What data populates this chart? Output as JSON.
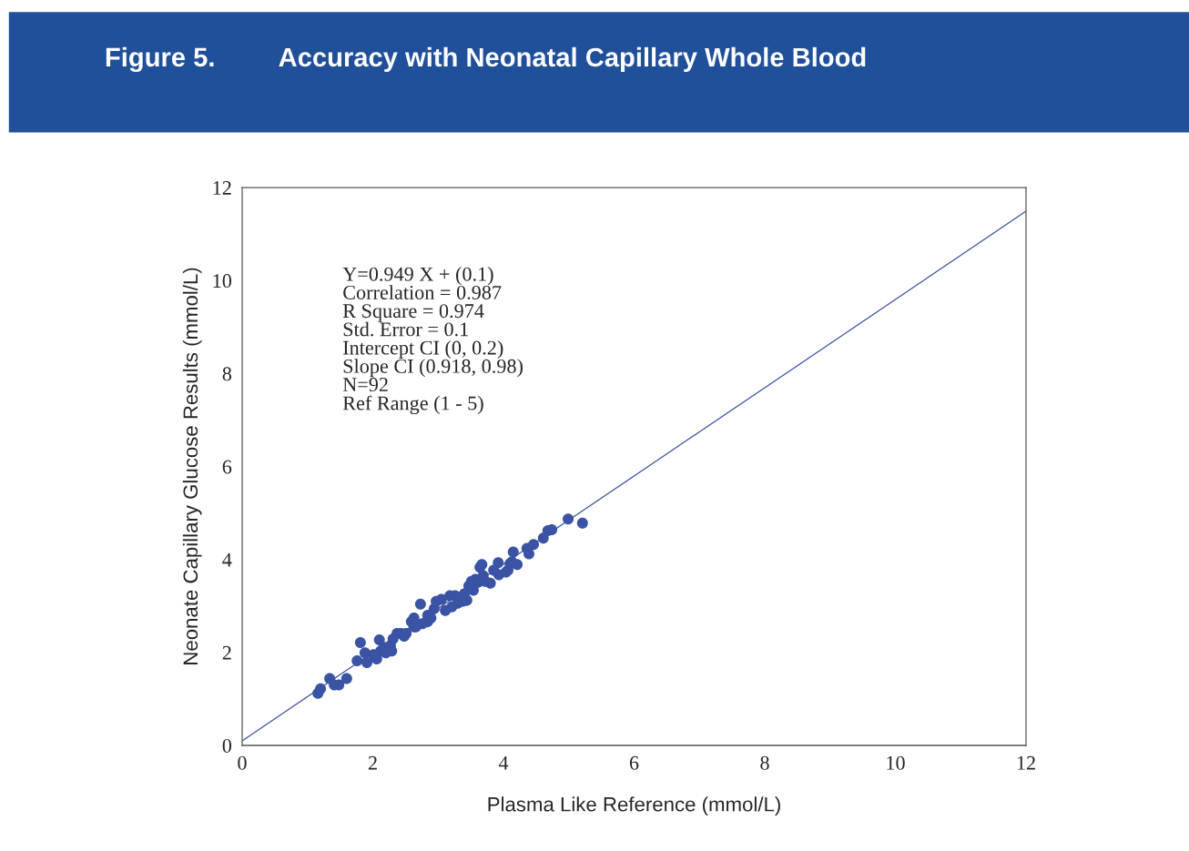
{
  "chart_data": {
    "type": "scatter",
    "title": "Figure 5.",
    "subtitle": "Accuracy with Neonatal Capillary Whole Blood",
    "xlabel": "Plasma Like Reference (mmol/L)",
    "ylabel": "Neonate Capillary Glucose Results (mmol/L)",
    "xlim": [
      0,
      12
    ],
    "ylim": [
      0,
      12
    ],
    "xticks": [
      0,
      2,
      4,
      6,
      8,
      10,
      12
    ],
    "yticks": [
      0,
      2,
      4,
      6,
      8,
      10,
      12
    ],
    "grid": false,
    "legend": false,
    "annotations": [
      "Y=0.949 X + (0.1)",
      "Correlation = 0.987",
      "R Square = 0.974",
      "Std. Error = 0.1",
      "Intercept CI (0, 0.2)",
      "Slope CI (0.918, 0.98)",
      "N=92",
      "Ref Range (1 - 5)"
    ],
    "series": [
      {
        "color": "#3a53a4",
        "marker": "circle",
        "x": [
          1.16,
          1.2,
          1.34,
          1.41,
          1.48,
          1.6,
          1.76,
          1.81,
          1.88,
          1.91,
          2.06,
          2.1,
          2.12,
          2.17,
          2.27,
          2.29,
          2.31,
          2.37,
          2.43,
          2.51,
          2.63,
          2.66,
          2.73,
          2.76,
          2.84,
          2.89,
          2.94,
          2.97,
          3.11,
          3.18,
          3.3,
          3.37,
          3.44,
          3.47,
          3.51,
          3.54,
          3.57,
          3.64,
          3.67,
          3.69,
          3.8,
          3.93,
          4.04,
          4.1,
          4.15,
          4.21,
          4.36,
          4.39,
          4.46,
          4.61,
          4.68,
          4.74,
          4.99,
          5.21,
          2.63,
          3.05,
          3.26,
          3.4,
          3.61,
          3.72,
          3.85,
          3.92,
          4.07,
          4.13,
          3.21,
          2.84,
          2.59,
          2.48,
          2.2,
          2.01
        ],
        "values": [
          1.12,
          1.22,
          1.44,
          1.3,
          1.3,
          1.44,
          1.82,
          2.21,
          1.99,
          1.78,
          1.86,
          2.27,
          2.03,
          2.11,
          2.15,
          2.03,
          2.29,
          2.41,
          2.41,
          2.41,
          2.74,
          2.55,
          3.04,
          2.62,
          2.8,
          2.74,
          2.94,
          3.1,
          2.9,
          3.22,
          3.06,
          3.1,
          3.12,
          3.43,
          3.53,
          3.34,
          3.57,
          3.83,
          3.89,
          3.65,
          3.49,
          3.67,
          3.73,
          3.91,
          4.16,
          3.89,
          4.24,
          4.12,
          4.32,
          4.46,
          4.62,
          4.64,
          4.87,
          4.78,
          2.55,
          3.14,
          3.22,
          3.26,
          3.51,
          3.53,
          3.77,
          3.93,
          3.77,
          3.95,
          2.98,
          2.66,
          2.66,
          2.35,
          1.99,
          1.95
        ]
      },
      {
        "type": "line",
        "color": "#3a53a4",
        "x": [
          0,
          12
        ],
        "values": [
          0.1,
          11.49
        ]
      }
    ]
  }
}
